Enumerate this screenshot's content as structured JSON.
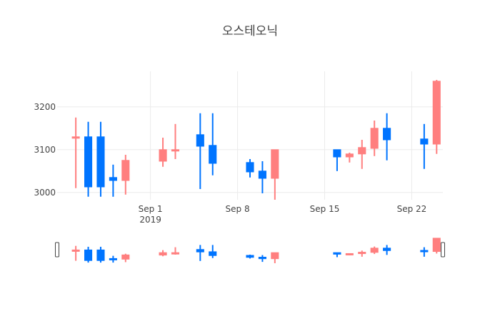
{
  "chart_data": {
    "type": "candlestick",
    "title": "오스테오닉",
    "xlabel": "",
    "ylabel": "",
    "x_tick_labels": [
      "Sep 1",
      "Sep 8",
      "Sep 15",
      "Sep 22"
    ],
    "x_tick_sublabel": "2019",
    "y_ticks": [
      3000,
      3100,
      3200
    ],
    "ylim": [
      2983,
      3283
    ],
    "xlim": [
      "2019-08-24T12:00",
      "2019-09-24T12:00"
    ],
    "grid": true,
    "range_slider": true,
    "colors": {
      "increasing": "#ff7f7f",
      "decreasing": "#0074ff"
    },
    "candles": [
      {
        "date": "2019-08-26",
        "open": 3128,
        "high": 3175,
        "low": 3010,
        "close": 3130
      },
      {
        "date": "2019-08-27",
        "open": 3130,
        "high": 3165,
        "low": 2990,
        "close": 3013
      },
      {
        "date": "2019-08-28",
        "open": 3130,
        "high": 3165,
        "low": 2990,
        "close": 3013
      },
      {
        "date": "2019-08-29",
        "open": 3035,
        "high": 3065,
        "low": 2990,
        "close": 3028
      },
      {
        "date": "2019-08-30",
        "open": 3028,
        "high": 3088,
        "low": 2995,
        "close": 3075
      },
      {
        "date": "2019-09-02",
        "open": 3073,
        "high": 3128,
        "low": 3060,
        "close": 3100
      },
      {
        "date": "2019-09-03",
        "open": 3098,
        "high": 3160,
        "low": 3078,
        "close": 3100
      },
      {
        "date": "2019-09-05",
        "open": 3135,
        "high": 3185,
        "low": 3008,
        "close": 3108
      },
      {
        "date": "2019-09-06",
        "open": 3110,
        "high": 3185,
        "low": 3040,
        "close": 3068
      },
      {
        "date": "2019-09-09",
        "open": 3070,
        "high": 3078,
        "low": 3035,
        "close": 3048
      },
      {
        "date": "2019-09-10",
        "open": 3050,
        "high": 3073,
        "low": 2998,
        "close": 3033
      },
      {
        "date": "2019-09-11",
        "open": 3033,
        "high": 3100,
        "low": 2983,
        "close": 3100
      },
      {
        "date": "2019-09-16",
        "open": 3100,
        "high": 3100,
        "low": 3050,
        "close": 3083
      },
      {
        "date": "2019-09-17",
        "open": 3083,
        "high": 3093,
        "low": 3070,
        "close": 3090
      },
      {
        "date": "2019-09-18",
        "open": 3090,
        "high": 3123,
        "low": 3055,
        "close": 3105
      },
      {
        "date": "2019-09-19",
        "open": 3103,
        "high": 3168,
        "low": 3085,
        "close": 3150
      },
      {
        "date": "2019-09-20",
        "open": 3150,
        "high": 3185,
        "low": 3075,
        "close": 3123
      },
      {
        "date": "2019-09-23",
        "open": 3125,
        "high": 3160,
        "low": 3055,
        "close": 3113
      },
      {
        "date": "2019-09-24",
        "open": 3113,
        "high": 3263,
        "low": 3090,
        "close": 3260
      }
    ]
  }
}
